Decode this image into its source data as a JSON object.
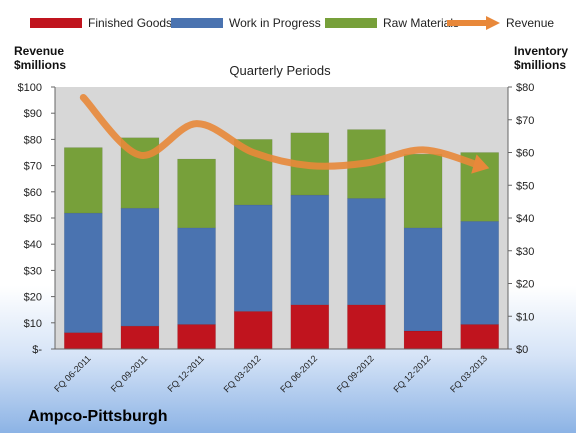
{
  "chart_data": {
    "type": "bar",
    "stacked": true,
    "title": "Quarterly Periods",
    "brand": "Ampco-Pittsburgh",
    "categories": [
      "FQ 06-2011",
      "FQ 09-2011",
      "FQ 12-2011",
      "FQ 03-2012",
      "FQ 06-2012",
      "FQ 09-2012",
      "FQ 12-2012",
      "FQ 03-2013"
    ],
    "series": [
      {
        "name": "Finished Goods",
        "color": "#c0141e",
        "values": [
          5,
          7,
          7.5,
          11.5,
          13.5,
          13.5,
          5.5,
          7.5
        ]
      },
      {
        "name": "Work in Progress",
        "color": "#4a73b0",
        "values": [
          36.5,
          36,
          29.5,
          32.5,
          33.5,
          32.5,
          31.5,
          31.5
        ]
      },
      {
        "name": "Raw Materials",
        "color": "#77a03a",
        "values": [
          20,
          21.5,
          21,
          20,
          19,
          21,
          22.5,
          21
        ]
      }
    ],
    "line_series": {
      "name": "Revenue",
      "color": "#e8883a",
      "values": [
        96,
        74,
        86,
        75,
        70,
        71,
        76,
        70
      ]
    },
    "left_axis": {
      "label_line1": "Revenue",
      "label_line2": "$millions",
      "ylim": [
        0,
        100
      ],
      "ticks": [
        "$-",
        "$10",
        "$20",
        "$30",
        "$40",
        "$50",
        "$60",
        "$70",
        "$80",
        "$90",
        "$100"
      ]
    },
    "right_axis": {
      "label_line1": "Inventory",
      "label_line2": "$millions",
      "ylim": [
        0,
        80
      ],
      "ticks": [
        "$0",
        "$10",
        "$20",
        "$30",
        "$40",
        "$50",
        "$60",
        "$70",
        "$80"
      ]
    },
    "grid": false,
    "legend_position": "top"
  }
}
